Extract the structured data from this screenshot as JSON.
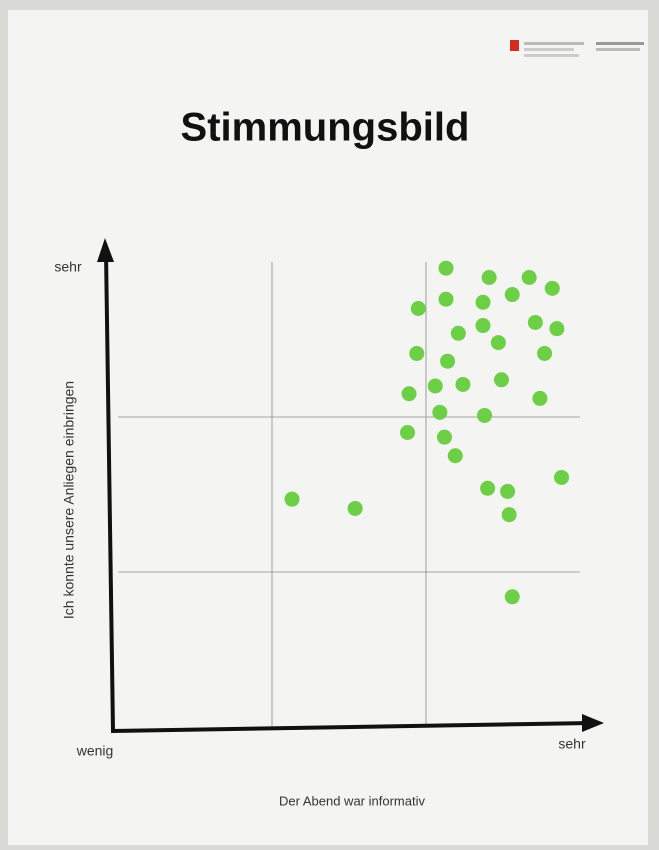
{
  "chart_data": {
    "type": "scatter",
    "title": "Stimmungsbild",
    "x_label": "Der Abend war informativ",
    "y_label": "Ich konnte unsere Anliegen einbringen",
    "x_high_label": "sehr",
    "y_high_label": "sehr",
    "origin_label": "wenig",
    "color": "#6ccf45",
    "xlim": [
      0,
      3
    ],
    "ylim": [
      0,
      3
    ],
    "xticks": [
      1,
      2
    ],
    "yticks": [
      1,
      2
    ],
    "grid": true,
    "x": [
      2.13,
      2.41,
      2.67,
      2.82,
      2.56,
      2.13,
      2.37,
      1.95,
      2.71,
      2.85,
      2.37,
      2.21,
      2.47,
      1.94,
      2.77,
      2.14,
      2.49,
      2.24,
      2.06,
      1.89,
      2.74,
      2.09,
      2.38,
      1.88,
      2.12,
      2.19,
      2.88,
      2.4,
      2.53,
      2.54,
      1.13,
      1.54,
      2.56
    ],
    "values": [
      2.96,
      2.9,
      2.9,
      2.83,
      2.79,
      2.76,
      2.74,
      2.7,
      2.61,
      2.57,
      2.59,
      2.54,
      2.48,
      2.41,
      2.41,
      2.36,
      2.24,
      2.21,
      2.2,
      2.15,
      2.12,
      2.03,
      2.01,
      1.9,
      1.87,
      1.75,
      1.61,
      1.54,
      1.52,
      1.37,
      1.47,
      1.41,
      0.84
    ]
  }
}
